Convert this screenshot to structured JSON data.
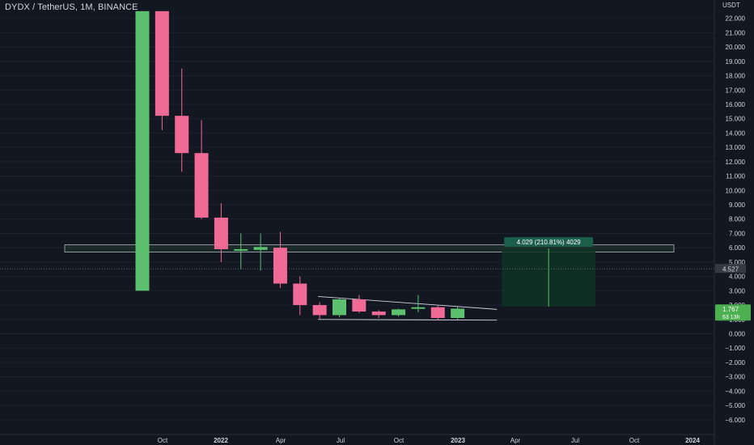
{
  "title": "DYDX / TetherUS, 1M, BINANCE",
  "colors": {
    "background": "#131722",
    "up": "#5dc06e",
    "down": "#f06a96",
    "axis_text": "#d1d4dc",
    "grid": "#1e222d",
    "pl_box": "#0f3324",
    "pl_label_bg": "#1b5e4a",
    "price_label_bg": "#4caf50"
  },
  "chart_data": {
    "type": "candlestick",
    "y_unit": "USDT",
    "ylim": [
      -6.0,
      22.0
    ],
    "y_ticks": [
      "22.000",
      "21.000",
      "20.000",
      "19.000",
      "18.000",
      "17.000",
      "16.000",
      "15.000",
      "14.000",
      "13.000",
      "12.000",
      "11.000",
      "10.000",
      "9.000",
      "8.000",
      "7.000",
      "6.000",
      "5.000",
      "4.000",
      "3.000",
      "2.000",
      "1.000",
      "0.000",
      "−1.000",
      "−2.000",
      "−3.000",
      "−4.000",
      "−5.000",
      "−6.000"
    ],
    "x_ticks": [
      "Oct",
      "2022",
      "Apr",
      "Jul",
      "Oct",
      "2023",
      "Apr",
      "Jul",
      "Oct",
      "2024"
    ],
    "candles": [
      {
        "date": "2021-09",
        "open": 3.0,
        "high": 22.5,
        "low": 3.0,
        "close": 22.5
      },
      {
        "date": "2021-10",
        "open": 22.5,
        "high": 22.5,
        "low": 14.2,
        "close": 15.2
      },
      {
        "date": "2021-11",
        "open": 15.2,
        "high": 18.5,
        "low": 11.3,
        "close": 12.6
      },
      {
        "date": "2021-12",
        "open": 12.6,
        "high": 14.9,
        "low": 8.0,
        "close": 8.1
      },
      {
        "date": "2022-01",
        "open": 8.1,
        "high": 9.1,
        "low": 5.0,
        "close": 5.9
      },
      {
        "date": "2022-02",
        "open": 5.9,
        "high": 7.0,
        "low": 4.5,
        "close": 5.9
      },
      {
        "date": "2022-03",
        "open": 5.85,
        "high": 7.0,
        "low": 4.4,
        "close": 6.05
      },
      {
        "date": "2022-04",
        "open": 6.0,
        "high": 7.1,
        "low": 3.2,
        "close": 3.5
      },
      {
        "date": "2022-05",
        "open": 3.5,
        "high": 4.0,
        "low": 1.3,
        "close": 2.0
      },
      {
        "date": "2022-06",
        "open": 2.0,
        "high": 2.2,
        "low": 1.0,
        "close": 1.3
      },
      {
        "date": "2022-07",
        "open": 1.3,
        "high": 2.45,
        "low": 1.15,
        "close": 2.4
      },
      {
        "date": "2022-08",
        "open": 2.4,
        "high": 2.7,
        "low": 1.45,
        "close": 1.55
      },
      {
        "date": "2022-09",
        "open": 1.55,
        "high": 1.65,
        "low": 1.1,
        "close": 1.3
      },
      {
        "date": "2022-10",
        "open": 1.3,
        "high": 1.75,
        "low": 1.2,
        "close": 1.7
      },
      {
        "date": "2022-11",
        "open": 1.75,
        "high": 2.7,
        "low": 1.5,
        "close": 1.85
      },
      {
        "date": "2022-12",
        "open": 1.85,
        "high": 1.95,
        "low": 0.95,
        "close": 1.1
      },
      {
        "date": "2023-01",
        "open": 1.1,
        "high": 1.9,
        "low": 1.0,
        "close": 1.75
      }
    ],
    "resistance_zone": {
      "low": 5.7,
      "high": 6.2,
      "from": "2021-09",
      "to": "2024-02"
    },
    "triangle": {
      "upper": [
        {
          "date": "2022-06",
          "price": 2.6
        },
        {
          "date": "2023-03",
          "price": 1.7
        }
      ],
      "lower": [
        {
          "date": "2022-06",
          "price": 1.0
        },
        {
          "date": "2023-03",
          "price": 0.95
        }
      ]
    },
    "projection": {
      "from": "2023-03",
      "to": "2023-08",
      "low": 1.9,
      "high": 5.95,
      "label": "4.029 (210.81%) 4029"
    },
    "current_price_label": {
      "price": "4.527",
      "value": 4.527
    },
    "last_price_label": {
      "price": "1.767",
      "countdown": "63 13h",
      "value": 1.767
    }
  }
}
